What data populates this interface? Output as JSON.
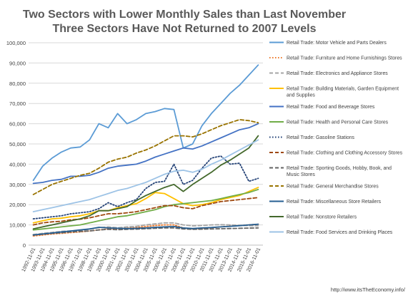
{
  "chart_data": {
    "type": "line",
    "title": [
      "Two Sectors with Lower Monthly Sales than Last November",
      "Three Sectors Have Not Returned to 2007 Levels"
    ],
    "xlabel": "",
    "ylabel": "",
    "ylim": [
      0,
      100000
    ],
    "yticks": [
      "0",
      "10,000",
      "20,000",
      "30,000",
      "40,000",
      "50,000",
      "60,000",
      "70,000",
      "80,000",
      "90,000",
      "100,000"
    ],
    "x": [
      "1992-11-01",
      "1993-11-01",
      "1994-11-01",
      "1995-11-01",
      "1996-11-01",
      "1997-11-01",
      "1998-11-01",
      "1999-11-01",
      "2000-11-01",
      "2001-11-01",
      "2002-11-01",
      "2003-11-01",
      "2004-11-01",
      "2005-11-01",
      "2006-11-01",
      "2007-11-01",
      "2008-11-01",
      "2009-11-01",
      "2010-11-01",
      "2011-11-01",
      "2012-11-01",
      "2013-11-01",
      "2014-11-01",
      "2015-11-01",
      "2016-11-01"
    ],
    "grid": true,
    "legend_position": "right",
    "source": "http://www.itsTheEconomy.info/",
    "series": [
      {
        "name": "Retail Trade: Motor Vehicle and Parts Dealers",
        "color": "#5b9bd5",
        "dash": "solid",
        "values": [
          32000,
          39000,
          43000,
          46000,
          48000,
          48500,
          52000,
          60000,
          58000,
          65000,
          60000,
          62000,
          65000,
          66000,
          67500,
          67000,
          48000,
          50000,
          59000,
          65000,
          70000,
          75000,
          79000,
          84000,
          89000
        ]
      },
      {
        "name": "Retail Trade: Furniture and Home Furnishings Stores",
        "color": "#ed7d31",
        "dash": "dot",
        "values": [
          4500,
          5000,
          5500,
          5800,
          6200,
          6500,
          7000,
          7500,
          8000,
          8200,
          8400,
          8700,
          9200,
          9700,
          10000,
          10000,
          8500,
          8000,
          8200,
          8600,
          9000,
          9400,
          9700,
          10000,
          10300
        ]
      },
      {
        "name": "Retail Trade: Electronics and Appliance Stores",
        "color": "#a5a5a5",
        "dash": "dash",
        "values": [
          5200,
          5800,
          6300,
          6800,
          7000,
          7300,
          7800,
          8600,
          9000,
          8600,
          9000,
          9300,
          10000,
          10500,
          11000,
          11000,
          10000,
          9500,
          9700,
          10000,
          10100,
          10000,
          9800,
          9600,
          9500
        ]
      },
      {
        "name": "Retail Trade: Building Materials, Garden Equipment and Supplies",
        "color": "#ffc000",
        "dash": "solid",
        "values": [
          11000,
          12000,
          13000,
          13300,
          14000,
          14500,
          15500,
          17000,
          17000,
          18500,
          19500,
          20500,
          23000,
          26000,
          25500,
          23000,
          20500,
          19500,
          20000,
          21000,
          22500,
          23500,
          24500,
          26500,
          28500
        ]
      },
      {
        "name": "Retail Trade: Food and Beverage Stores",
        "color": "#4472c4",
        "dash": "solid",
        "values": [
          30500,
          31000,
          32000,
          32500,
          34000,
          34000,
          34500,
          36000,
          38000,
          39000,
          39500,
          40000,
          41500,
          43500,
          45000,
          46500,
          48000,
          47500,
          49000,
          51000,
          53000,
          55000,
          57000,
          58000,
          60000
        ]
      },
      {
        "name": "Retail Trade: Health and Personal Care Stores",
        "color": "#70ad47",
        "dash": "solid",
        "values": [
          7500,
          8000,
          8500,
          9000,
          9500,
          10000,
          11000,
          12000,
          13000,
          14000,
          14500,
          15500,
          16500,
          17500,
          19000,
          20000,
          20500,
          21000,
          21500,
          22000,
          23000,
          24000,
          25000,
          26000,
          27500
        ]
      },
      {
        "name": "Retail Trade: Gasoline Stations",
        "color": "#264478",
        "dash": "dot",
        "values": [
          13000,
          13500,
          14000,
          14500,
          15500,
          16000,
          16500,
          18000,
          21000,
          19000,
          21000,
          22500,
          28000,
          31000,
          31500,
          40000,
          30000,
          32000,
          38000,
          43000,
          44000,
          40000,
          40500,
          31500,
          33000
        ]
      },
      {
        "name": "Retail Trade: Clothing and Clothing Accessory Stores",
        "color": "#9e480e",
        "dash": "dash",
        "values": [
          10000,
          11000,
          11500,
          11800,
          12500,
          12800,
          13500,
          14500,
          15500,
          15500,
          16000,
          16500,
          17500,
          18500,
          19500,
          19500,
          18500,
          18000,
          19500,
          20500,
          21500,
          22000,
          22500,
          23000,
          23500
        ]
      },
      {
        "name": "Retail Trade: Sporting Goods, Hobby, Book, and Music Stores",
        "color": "#636363",
        "dash": "dash",
        "values": [
          5000,
          5400,
          5800,
          6100,
          6500,
          6800,
          7000,
          7500,
          7800,
          7600,
          7800,
          7900,
          8100,
          8300,
          8500,
          8500,
          8000,
          7800,
          7900,
          8000,
          8100,
          8200,
          8300,
          8400,
          8500
        ]
      },
      {
        "name": "Retail Trade: General Merchandise Stores",
        "color": "#997300",
        "dash": "dash",
        "values": [
          25000,
          27500,
          30000,
          31500,
          33000,
          34500,
          35500,
          38000,
          41000,
          42500,
          43500,
          45500,
          47000,
          49000,
          51500,
          54000,
          54000,
          53500,
          55000,
          57000,
          59000,
          60500,
          62000,
          61500,
          60500
        ]
      },
      {
        "name": "Retail Trade: Miscellaneous Store Retailers",
        "color": "#255e91",
        "dash": "solid",
        "values": [
          5000,
          5500,
          6000,
          6500,
          7000,
          7500,
          8000,
          8800,
          8500,
          8300,
          8200,
          8300,
          8500,
          8800,
          9000,
          9200,
          8500,
          8200,
          8500,
          8700,
          9000,
          9300,
          9600,
          10000,
          10300
        ]
      },
      {
        "name": "Retail Trade: Nonstore Retailers",
        "color": "#43682b",
        "dash": "solid",
        "values": [
          8000,
          9000,
          10000,
          11000,
          12000,
          13000,
          14500,
          17000,
          17000,
          18000,
          19000,
          22000,
          24500,
          26500,
          28500,
          30000,
          26500,
          30000,
          33000,
          36000,
          39500,
          42000,
          45000,
          48000,
          54000
        ]
      },
      {
        "name": "Retail Trade: Food Services and Drinking Places",
        "color": "#9dc3e6",
        "dash": "solid",
        "values": [
          16500,
          17500,
          18500,
          19500,
          20500,
          21500,
          22500,
          24000,
          25500,
          27000,
          28000,
          29500,
          31000,
          33000,
          35000,
          36500,
          37000,
          36000,
          37500,
          40000,
          42000,
          44500,
          47000,
          49500,
          52000
        ]
      }
    ]
  }
}
